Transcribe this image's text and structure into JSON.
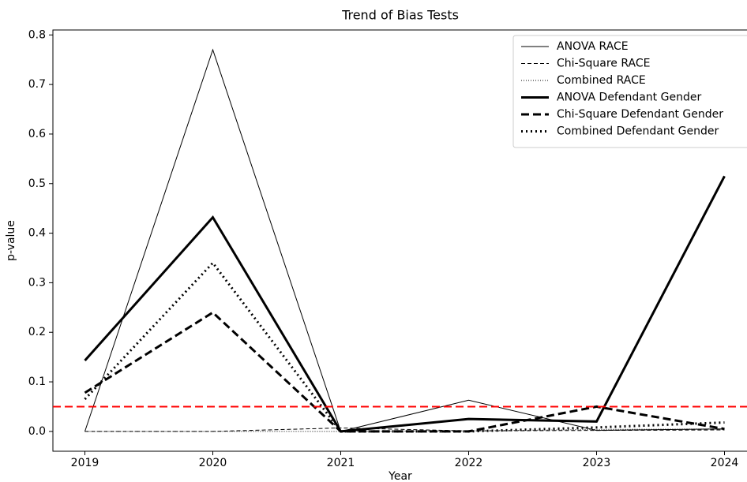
{
  "chart_data": {
    "type": "line",
    "title": "Trend of Bias Tests",
    "x_label": "Year",
    "y_label": "p-value",
    "x": [
      2019,
      2020,
      2021,
      2022,
      2023,
      2024
    ],
    "series": [
      {
        "name": "ANOVA RACE",
        "color": "#000000",
        "linestyle": "solid",
        "linewidth": 1,
        "values": [
          0.0,
          0.77,
          0.0,
          0.063,
          0.002,
          0.005
        ]
      },
      {
        "name": "Chi-Square RACE",
        "color": "#000000",
        "linestyle": "dashed",
        "linewidth": 1,
        "values": [
          0.0,
          0.0,
          0.007,
          0.001,
          0.002,
          0.003
        ]
      },
      {
        "name": "Combined RACE",
        "color": "#000000",
        "linestyle": "dotted",
        "linewidth": 1,
        "values": [
          0.0,
          0.0,
          0.0,
          0.001,
          0.004,
          0.005
        ]
      },
      {
        "name": "ANOVA Defendant Gender",
        "color": "#000000",
        "linestyle": "solid",
        "linewidth": 3,
        "values": [
          0.143,
          0.432,
          0.0,
          0.025,
          0.02,
          0.515
        ]
      },
      {
        "name": "Chi-Square Defendant Gender",
        "color": "#000000",
        "linestyle": "dashed",
        "linewidth": 3,
        "values": [
          0.078,
          0.24,
          0.0,
          0.0,
          0.05,
          0.005
        ]
      },
      {
        "name": "Combined Defendant Gender",
        "color": "#000000",
        "linestyle": "dotted",
        "linewidth": 3,
        "values": [
          0.065,
          0.34,
          0.0,
          0.0,
          0.008,
          0.018
        ]
      }
    ],
    "hline": {
      "value": 0.05,
      "color": "#ff0000",
      "linestyle": "dashed"
    },
    "xlim": [
      2018.75,
      2024.25
    ],
    "xticks": [
      2019,
      2020,
      2021,
      2022,
      2023,
      2024
    ],
    "ylim": [
      -0.04,
      0.81
    ],
    "yticks": [
      {
        "value": 0,
        "label": "0.0"
      },
      0.1,
      0.2,
      0.3,
      0.4,
      0.5,
      0.6,
      0.7,
      0.8
    ],
    "legend": "upper right",
    "grid": false
  }
}
